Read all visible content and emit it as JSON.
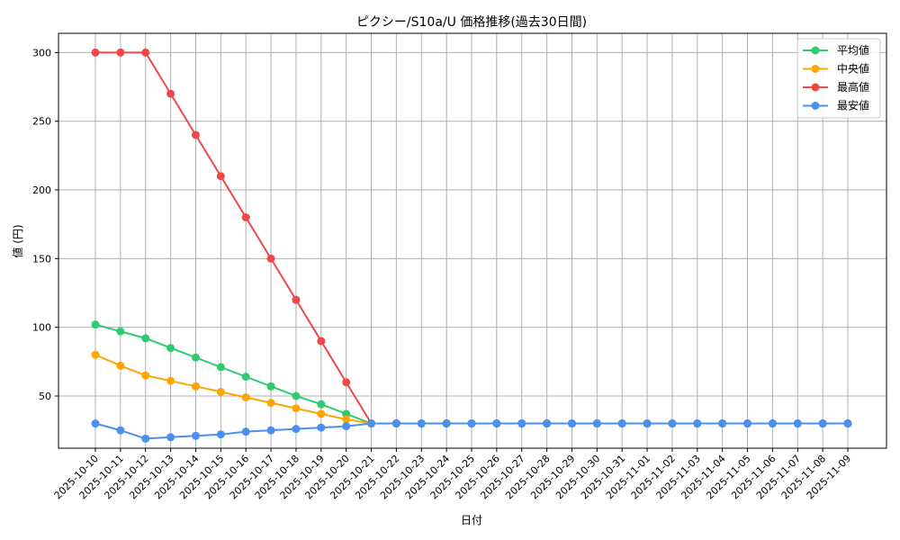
{
  "chart_data": {
    "type": "line",
    "title": "ピクシー/S10a/U 価格推移(過去30日間)",
    "xlabel": "日付",
    "ylabel": "値 (円)",
    "categories": [
      "2025-10-10",
      "2025-10-11",
      "2025-10-12",
      "2025-10-13",
      "2025-10-14",
      "2025-10-15",
      "2025-10-16",
      "2025-10-17",
      "2025-10-18",
      "2025-10-19",
      "2025-10-20",
      "2025-10-21",
      "2025-10-22",
      "2025-10-23",
      "2025-10-24",
      "2025-10-25",
      "2025-10-26",
      "2025-10-27",
      "2025-10-28",
      "2025-10-29",
      "2025-10-30",
      "2025-10-31",
      "2025-11-01",
      "2025-11-02",
      "2025-11-03",
      "2025-11-04",
      "2025-11-05",
      "2025-11-06",
      "2025-11-07",
      "2025-11-08",
      "2025-11-09"
    ],
    "ylim": [
      12,
      314
    ],
    "yticks": [
      50,
      100,
      150,
      200,
      250,
      300
    ],
    "grid": true,
    "legend_position": "top-right",
    "series": [
      {
        "name": "平均値",
        "color": "#2ecc71",
        "values": [
          102,
          97,
          92,
          85,
          78,
          71,
          64,
          57,
          50,
          44,
          37,
          30,
          30,
          30,
          30,
          30,
          30,
          30,
          30,
          30,
          30,
          30,
          30,
          30,
          30,
          30,
          30,
          30,
          30,
          30,
          30
        ]
      },
      {
        "name": "中央値",
        "color": "#ffa500",
        "values": [
          80,
          72,
          65,
          61,
          57,
          53,
          49,
          45,
          41,
          37,
          33,
          30,
          30,
          30,
          30,
          30,
          30,
          30,
          30,
          30,
          30,
          30,
          30,
          30,
          30,
          30,
          30,
          30,
          30,
          30,
          30
        ]
      },
      {
        "name": "最高値",
        "color": "#f04848",
        "values": [
          300,
          300,
          300,
          270,
          240,
          210,
          180,
          150,
          120,
          90,
          60,
          30,
          30,
          30,
          30,
          30,
          30,
          30,
          30,
          30,
          30,
          30,
          30,
          30,
          30,
          30,
          30,
          30,
          30,
          30,
          30
        ]
      },
      {
        "name": "最安値",
        "color": "#4a90f0",
        "values": [
          30,
          25,
          19,
          20,
          21,
          22,
          24,
          25,
          26,
          27,
          28,
          30,
          30,
          30,
          30,
          30,
          30,
          30,
          30,
          30,
          30,
          30,
          30,
          30,
          30,
          30,
          30,
          30,
          30,
          30,
          30
        ]
      }
    ]
  }
}
